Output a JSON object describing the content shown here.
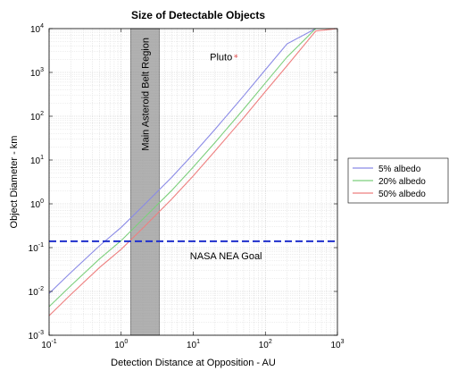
{
  "chart_data": {
    "type": "line",
    "title": "Size of Detectable Objects",
    "xlabel": "Detection Distance at Opposition - AU",
    "ylabel": "Object Diameter - km",
    "x_scale": "log",
    "y_scale": "log",
    "xlim": [
      0.1,
      1000
    ],
    "ylim": [
      0.001,
      10000
    ],
    "x_ticks": [
      {
        "base": "10",
        "exp": "-1",
        "v": 0.1
      },
      {
        "base": "10",
        "exp": "0",
        "v": 1
      },
      {
        "base": "10",
        "exp": "1",
        "v": 10
      },
      {
        "base": "10",
        "exp": "2",
        "v": 100
      },
      {
        "base": "10",
        "exp": "3",
        "v": 1000
      }
    ],
    "y_ticks": [
      {
        "base": "10",
        "exp": "-3",
        "v": 0.001
      },
      {
        "base": "10",
        "exp": "-2",
        "v": 0.01
      },
      {
        "base": "10",
        "exp": "-1",
        "v": 0.1
      },
      {
        "base": "10",
        "exp": "0",
        "v": 1
      },
      {
        "base": "10",
        "exp": "1",
        "v": 10
      },
      {
        "base": "10",
        "exp": "2",
        "v": 100
      },
      {
        "base": "10",
        "exp": "3",
        "v": 1000
      },
      {
        "base": "10",
        "exp": "4",
        "v": 10000
      }
    ],
    "grid": true,
    "legend_position": "right",
    "series": [
      {
        "name": "5% albedo",
        "color": "#8a8ae6",
        "x": [
          0.1,
          0.2,
          0.5,
          1,
          2,
          5,
          10,
          20,
          50,
          100,
          200,
          500,
          1000
        ],
        "y": [
          0.009,
          0.027,
          0.11,
          0.29,
          0.89,
          4.0,
          13.7,
          50,
          290,
          1150,
          4500,
          10000,
          10000
        ]
      },
      {
        "name": "20% albedo",
        "color": "#7ccf7c",
        "x": [
          0.1,
          0.2,
          0.5,
          1,
          2,
          5,
          10,
          20,
          50,
          100,
          200,
          500,
          1000
        ],
        "y": [
          0.0045,
          0.0135,
          0.055,
          0.145,
          0.45,
          2.0,
          6.9,
          25,
          145,
          575,
          2250,
          10000,
          10000
        ]
      },
      {
        "name": "50% albedo",
        "color": "#ee7f7f",
        "x": [
          0.1,
          0.2,
          0.5,
          1,
          2,
          5,
          10,
          20,
          50,
          100,
          200,
          500,
          1000
        ],
        "y": [
          0.0028,
          0.0085,
          0.035,
          0.092,
          0.28,
          1.27,
          4.35,
          16,
          92,
          365,
          1420,
          8800,
          10000
        ]
      }
    ],
    "nasa_goal": {
      "label": "NASA NEA Goal",
      "value": 0.14,
      "color": "#1f2fcc"
    },
    "asteroid_belt": {
      "label": "Main Asteroid Belt Region",
      "x_range": [
        1.35,
        3.4
      ]
    },
    "pluto": {
      "label": "Pluto",
      "x": 39,
      "y": 2300,
      "color": "#e05050"
    }
  }
}
